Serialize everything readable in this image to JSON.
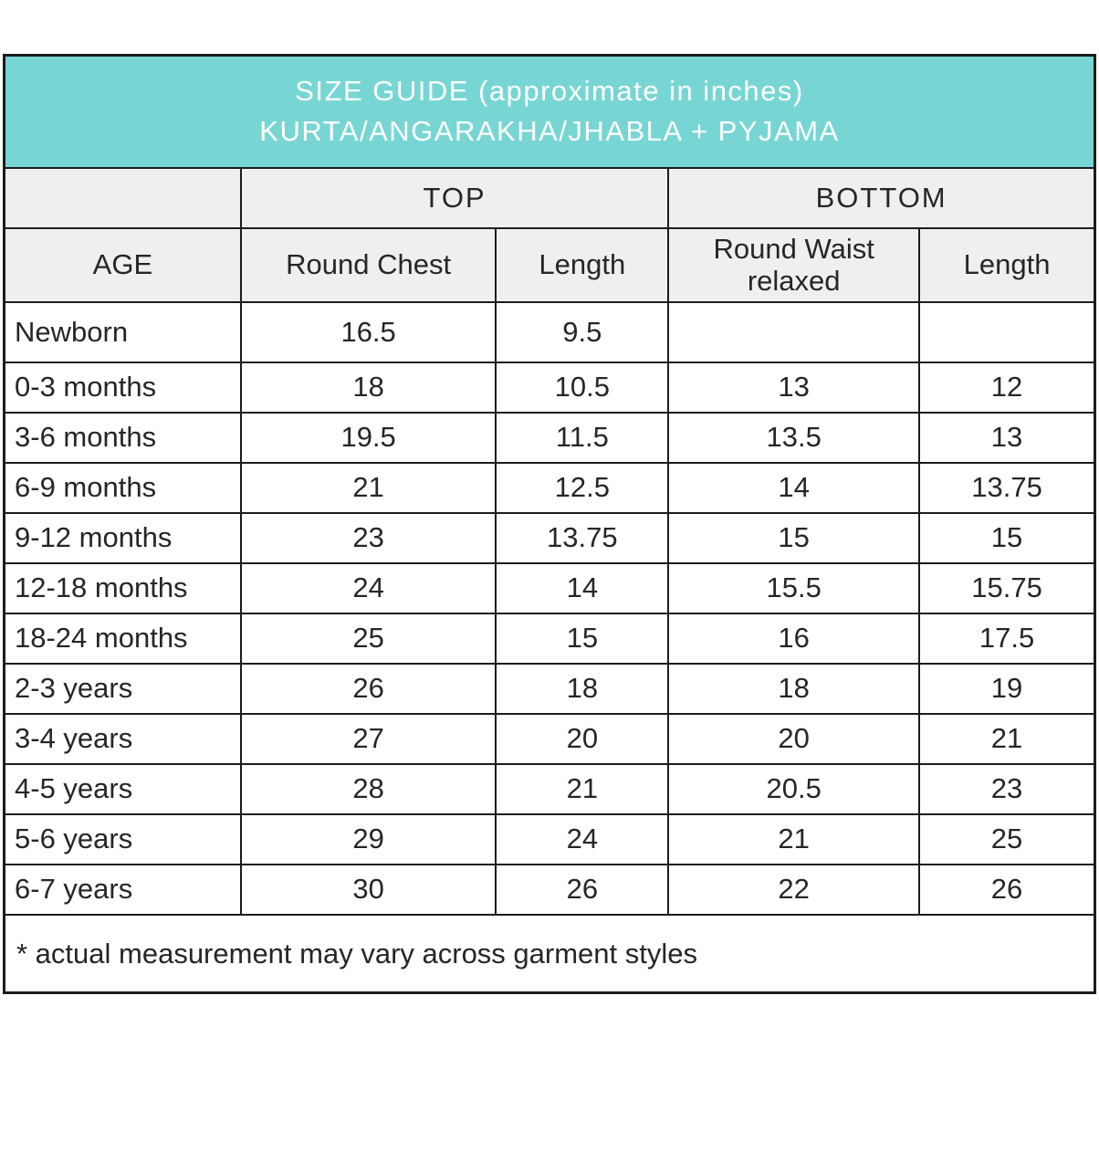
{
  "header": {
    "title_line1": "SIZE GUIDE (approximate in inches)",
    "title_line2": "KURTA/ANGARAKHA/JHABLA + PYJAMA",
    "background_color": "#77d6d3",
    "text_color": "#ffffff"
  },
  "table": {
    "group_headers": {
      "spacer": "",
      "top": "TOP",
      "bottom": "BOTTOM"
    },
    "columns": {
      "age": "AGE",
      "round_chest": "Round Chest",
      "top_length": "Length",
      "round_waist": "Round Waist relaxed",
      "bottom_length": "Length"
    },
    "header_background": "#efefef",
    "border_color": "#1c1c1c",
    "rows": [
      {
        "age": "Newborn",
        "round_chest": "16.5",
        "top_length": "9.5",
        "round_waist": "",
        "bottom_length": ""
      },
      {
        "age": "0-3 months",
        "round_chest": "18",
        "top_length": "10.5",
        "round_waist": "13",
        "bottom_length": "12"
      },
      {
        "age": "3-6 months",
        "round_chest": "19.5",
        "top_length": "11.5",
        "round_waist": "13.5",
        "bottom_length": "13"
      },
      {
        "age": "6-9 months",
        "round_chest": "21",
        "top_length": "12.5",
        "round_waist": "14",
        "bottom_length": "13.75"
      },
      {
        "age": "9-12 months",
        "round_chest": "23",
        "top_length": "13.75",
        "round_waist": "15",
        "bottom_length": "15"
      },
      {
        "age": "12-18 months",
        "round_chest": "24",
        "top_length": "14",
        "round_waist": "15.5",
        "bottom_length": "15.75"
      },
      {
        "age": "18-24 months",
        "round_chest": "25",
        "top_length": "15",
        "round_waist": "16",
        "bottom_length": "17.5"
      },
      {
        "age": "2-3 years",
        "round_chest": "26",
        "top_length": "18",
        "round_waist": "18",
        "bottom_length": "19"
      },
      {
        "age": "3-4 years",
        "round_chest": "27",
        "top_length": "20",
        "round_waist": "20",
        "bottom_length": "21"
      },
      {
        "age": "4-5 years",
        "round_chest": "28",
        "top_length": "21",
        "round_waist": "20.5",
        "bottom_length": "23"
      },
      {
        "age": "5-6 years",
        "round_chest": "29",
        "top_length": "24",
        "round_waist": "21",
        "bottom_length": "25"
      },
      {
        "age": "6-7 years",
        "round_chest": "30",
        "top_length": "26",
        "round_waist": "22",
        "bottom_length": "26"
      }
    ]
  },
  "footnote": "* actual measurement may vary across garment styles"
}
